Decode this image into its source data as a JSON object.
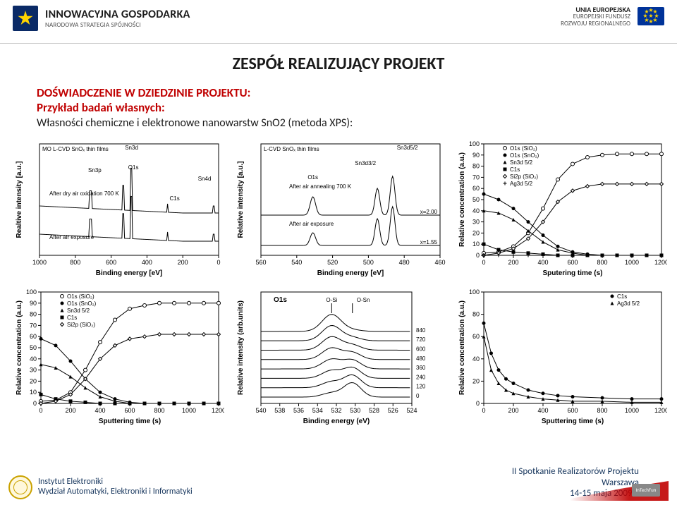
{
  "header": {
    "brand_title": "INNOWACYJNA GOSPODARKA",
    "brand_sub": "NARODOWA STRATEGIA SPÓJNOŚCI",
    "eu_title": "UNIA EUROPEJSKA",
    "eu_line2": "EUROPEJSKI FUNDUSZ",
    "eu_line3": "ROZWOJU REGIONALNEGO"
  },
  "titles": {
    "main": "ZESPÓŁ REALIZUJĄCY PROJEKT",
    "sub1": "DOŚWIADCZENIE W DZIEDZINIE PROJEKTU:",
    "sub2": "Przykład badań własnych:",
    "sub3": "Własności chemiczne i elektronowe nanowarstw SnO2 (metoda XPS):"
  },
  "footer": {
    "inst1": "Instytut Elektroniki",
    "inst2": "Wydział Automatyki, Elektroniki i Informatyki",
    "meet": "II Spotkanie Realizatorów Projektu",
    "city": "Warszawa",
    "date": "14-15 maja 2009 r.",
    "corner": "InTechFun"
  },
  "colors": {
    "accent_red": "#c00000",
    "text_dark": "#1a1a1a",
    "text_navy": "#17365d",
    "axis": "#000000",
    "bg": "#ffffff"
  },
  "panel1": {
    "type": "line-xps-survey",
    "title": "MO L-CVD SnOₓ thin films",
    "xlabel": "Binding energy [eV]",
    "ylabel": "Realtive intensity [a.u.]",
    "xlim": [
      1000,
      0
    ],
    "xticks": [
      1000,
      800,
      600,
      400,
      200,
      0
    ],
    "peaks_labels": [
      "Sn3d",
      "Sn3p",
      "O1s",
      "Sn4d",
      "C1s"
    ],
    "traces": [
      {
        "label": "After dry air oxidation 700 K",
        "offset": 55,
        "color": "#000000"
      },
      {
        "label": "After air exposure",
        "offset": 15,
        "color": "#000000"
      }
    ]
  },
  "panel2": {
    "type": "line-xps-region",
    "title": "L-CVD SnOₓ thin films",
    "xlabel": "Binding energy [eV]",
    "ylabel": "Relative intensity [a.u.]",
    "xlim": [
      560,
      460
    ],
    "xticks": [
      560,
      540,
      520,
      500,
      480,
      460
    ],
    "peaks_labels": [
      "Sn3d5/2",
      "Sn3d3/2",
      "O1s"
    ],
    "traces": [
      {
        "label": "After air annealing 700 K",
        "x_text": "x=2.00",
        "offset": 55,
        "color": "#000000"
      },
      {
        "label": "After air exposure",
        "x_text": "x=1.55",
        "offset": 12,
        "color": "#000000"
      }
    ]
  },
  "panel3": {
    "type": "scatter-depth",
    "xlabel": "Sputering time (s)",
    "ylabel": "Relative concentration (a.u.)",
    "xlim": [
      0,
      1200
    ],
    "xticks": [
      0,
      200,
      400,
      600,
      800,
      1000,
      1200
    ],
    "ylim": [
      0,
      100
    ],
    "yticks": [
      0,
      10,
      20,
      30,
      40,
      50,
      60,
      70,
      80,
      90,
      100
    ],
    "legend": [
      {
        "label": "O1s (SiO₂)",
        "marker": "circle-open",
        "color": "#000000"
      },
      {
        "label": "O1s (SnO₂)",
        "marker": "circle",
        "color": "#000000"
      },
      {
        "label": "Sn3d 5/2",
        "marker": "triangle",
        "color": "#000000"
      },
      {
        "label": "C1s",
        "marker": "square",
        "color": "#000000"
      },
      {
        "label": "Si2p (SiO₂)",
        "marker": "diamond",
        "color": "#000000"
      },
      {
        "label": "Ag3d 5/2",
        "marker": "plus",
        "color": "#000000"
      }
    ],
    "series": {
      "O1s_SiO2": [
        [
          0,
          2
        ],
        [
          100,
          3
        ],
        [
          200,
          8
        ],
        [
          300,
          20
        ],
        [
          400,
          42
        ],
        [
          500,
          68
        ],
        [
          600,
          82
        ],
        [
          700,
          88
        ],
        [
          800,
          90
        ],
        [
          900,
          91
        ],
        [
          1000,
          91
        ],
        [
          1100,
          91
        ],
        [
          1200,
          91
        ]
      ],
      "O1s_SnO2": [
        [
          0,
          55
        ],
        [
          100,
          50
        ],
        [
          200,
          42
        ],
        [
          300,
          30
        ],
        [
          400,
          18
        ],
        [
          500,
          8
        ],
        [
          600,
          3
        ],
        [
          700,
          1
        ],
        [
          800,
          0
        ],
        [
          900,
          0
        ],
        [
          1000,
          0
        ],
        [
          1100,
          0
        ],
        [
          1200,
          0
        ]
      ],
      "Sn3d": [
        [
          0,
          40
        ],
        [
          100,
          38
        ],
        [
          200,
          32
        ],
        [
          300,
          22
        ],
        [
          400,
          12
        ],
        [
          500,
          5
        ],
        [
          600,
          2
        ],
        [
          700,
          0
        ],
        [
          800,
          0
        ],
        [
          900,
          0
        ],
        [
          1000,
          0
        ],
        [
          1100,
          0
        ],
        [
          1200,
          0
        ]
      ],
      "C1s": [
        [
          0,
          10
        ],
        [
          100,
          5
        ],
        [
          200,
          3
        ],
        [
          300,
          2
        ],
        [
          400,
          1
        ],
        [
          500,
          0
        ],
        [
          600,
          0
        ],
        [
          700,
          0
        ],
        [
          800,
          0
        ],
        [
          900,
          0
        ],
        [
          1000,
          0
        ],
        [
          1100,
          0
        ],
        [
          1200,
          0
        ]
      ],
      "Si2p": [
        [
          0,
          0
        ],
        [
          100,
          2
        ],
        [
          200,
          6
        ],
        [
          300,
          15
        ],
        [
          400,
          30
        ],
        [
          500,
          48
        ],
        [
          600,
          58
        ],
        [
          700,
          62
        ],
        [
          800,
          64
        ],
        [
          900,
          64
        ],
        [
          1000,
          64
        ],
        [
          1100,
          64
        ],
        [
          1200,
          64
        ]
      ],
      "Ag3d": [
        [
          0,
          0
        ],
        [
          100,
          0
        ],
        [
          200,
          0
        ],
        [
          300,
          0
        ],
        [
          400,
          0
        ],
        [
          500,
          0
        ],
        [
          600,
          0
        ],
        [
          700,
          0
        ],
        [
          800,
          0
        ],
        [
          900,
          0
        ],
        [
          1000,
          0
        ],
        [
          1100,
          0
        ],
        [
          1200,
          0
        ]
      ]
    }
  },
  "panel4": {
    "type": "scatter-depth",
    "xlabel": "Sputtering time (s)",
    "ylabel": "Relative concentration (a.u.)",
    "xlim": [
      0,
      1200
    ],
    "xticks": [
      0,
      200,
      400,
      600,
      800,
      1000,
      1200
    ],
    "ylim": [
      0,
      100
    ],
    "yticks": [
      0,
      10,
      20,
      30,
      40,
      50,
      60,
      70,
      80,
      90,
      100
    ],
    "legend": [
      {
        "label": "O1s (SiO₂)",
        "marker": "circle-open",
        "color": "#000000"
      },
      {
        "label": "O1s (SnO₂)",
        "marker": "circle",
        "color": "#000000"
      },
      {
        "label": "Sn3d 5/2",
        "marker": "triangle",
        "color": "#000000"
      },
      {
        "label": "C1s",
        "marker": "square",
        "color": "#000000"
      },
      {
        "label": "Si2p (SiO₂)",
        "marker": "diamond",
        "color": "#000000"
      }
    ],
    "series": {
      "O1s_SiO2": [
        [
          0,
          2
        ],
        [
          100,
          3
        ],
        [
          200,
          10
        ],
        [
          300,
          30
        ],
        [
          400,
          55
        ],
        [
          500,
          75
        ],
        [
          600,
          85
        ],
        [
          700,
          88
        ],
        [
          800,
          90
        ],
        [
          900,
          90
        ],
        [
          1000,
          90
        ],
        [
          1100,
          90
        ],
        [
          1200,
          90
        ]
      ],
      "O1s_SnO2": [
        [
          0,
          58
        ],
        [
          100,
          52
        ],
        [
          200,
          38
        ],
        [
          300,
          22
        ],
        [
          400,
          10
        ],
        [
          500,
          4
        ],
        [
          600,
          1
        ],
        [
          700,
          0
        ],
        [
          800,
          0
        ],
        [
          900,
          0
        ],
        [
          1000,
          0
        ],
        [
          1100,
          0
        ],
        [
          1200,
          0
        ]
      ],
      "Sn3d": [
        [
          0,
          35
        ],
        [
          100,
          32
        ],
        [
          200,
          24
        ],
        [
          300,
          14
        ],
        [
          400,
          6
        ],
        [
          500,
          2
        ],
        [
          600,
          0
        ],
        [
          700,
          0
        ],
        [
          800,
          0
        ],
        [
          900,
          0
        ],
        [
          1000,
          0
        ],
        [
          1100,
          0
        ],
        [
          1200,
          0
        ]
      ],
      "C1s": [
        [
          0,
          8
        ],
        [
          100,
          4
        ],
        [
          200,
          2
        ],
        [
          300,
          1
        ],
        [
          400,
          0
        ],
        [
          500,
          0
        ],
        [
          600,
          0
        ],
        [
          700,
          0
        ],
        [
          800,
          0
        ],
        [
          900,
          0
        ],
        [
          1000,
          0
        ],
        [
          1100,
          0
        ],
        [
          1200,
          0
        ]
      ],
      "Si2p": [
        [
          0,
          0
        ],
        [
          100,
          2
        ],
        [
          200,
          8
        ],
        [
          300,
          22
        ],
        [
          400,
          40
        ],
        [
          500,
          52
        ],
        [
          600,
          58
        ],
        [
          700,
          60
        ],
        [
          800,
          62
        ],
        [
          900,
          62
        ],
        [
          1000,
          62
        ],
        [
          1100,
          62
        ],
        [
          1200,
          62
        ]
      ]
    }
  },
  "panel5": {
    "type": "line-xps-O1s-stack",
    "xlabel": "Binding energy (eV)",
    "ylabel": "Relative intensity (arb.units)",
    "main_label": "O1s",
    "sub_labels": [
      "O-Si",
      "O-Sn"
    ],
    "xlim": [
      540,
      524
    ],
    "xticks": [
      540,
      538,
      536,
      534,
      532,
      530,
      528,
      526,
      524
    ],
    "stack_times": [
      0,
      120,
      240,
      360,
      480,
      600,
      720,
      840
    ]
  },
  "panel6": {
    "type": "scatter-depth",
    "xlabel": "Sputtering time (s)",
    "ylabel": "Relative  concentration (a.u.)",
    "xlim": [
      0,
      1200
    ],
    "xticks": [
      0,
      200,
      400,
      600,
      800,
      1000,
      1200
    ],
    "ylim": [
      0,
      100
    ],
    "legend": [
      {
        "label": "C1s",
        "marker": "circle",
        "color": "#000000"
      },
      {
        "label": "Ag3d 5/2",
        "marker": "triangle",
        "color": "#000000"
      }
    ],
    "series": {
      "C1s": [
        [
          0,
          72
        ],
        [
          50,
          45
        ],
        [
          100,
          30
        ],
        [
          150,
          22
        ],
        [
          200,
          18
        ],
        [
          300,
          12
        ],
        [
          400,
          9
        ],
        [
          500,
          7
        ],
        [
          600,
          6
        ],
        [
          800,
          5
        ],
        [
          1000,
          4
        ],
        [
          1200,
          4
        ]
      ],
      "Ag3d": [
        [
          0,
          60
        ],
        [
          50,
          30
        ],
        [
          100,
          18
        ],
        [
          150,
          12
        ],
        [
          200,
          9
        ],
        [
          300,
          6
        ],
        [
          400,
          4
        ],
        [
          500,
          3
        ],
        [
          600,
          2
        ],
        [
          800,
          2
        ],
        [
          1000,
          1
        ],
        [
          1200,
          1
        ]
      ]
    }
  }
}
